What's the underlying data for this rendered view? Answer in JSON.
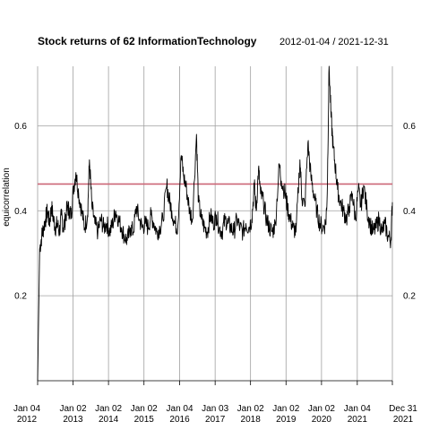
{
  "chart_data": {
    "type": "line",
    "title": "Stock returns of 62 InformationTechnology",
    "date_range_label": "2012-01-04 / 2021-12-31",
    "ylabel": "equicorrelation",
    "xlabel": "",
    "ylim": [
      0.0,
      0.74
    ],
    "y_ticks": [
      0.2,
      0.4,
      0.6
    ],
    "y_tick_labels": [
      "0.2",
      "0.4",
      "0.6"
    ],
    "x_ticks": [
      {
        "date": "2012-01-04",
        "line1": "Jan 04",
        "line2": "2012"
      },
      {
        "date": "2013-01-02",
        "line1": "Jan 02",
        "line2": "2013"
      },
      {
        "date": "2014-01-02",
        "line1": "Jan 02",
        "line2": "2014"
      },
      {
        "date": "2015-01-02",
        "line1": "Jan 02",
        "line2": "2015"
      },
      {
        "date": "2016-01-04",
        "line1": "Jan 04",
        "line2": "2016"
      },
      {
        "date": "2017-01-03",
        "line1": "Jan 03",
        "line2": "2017"
      },
      {
        "date": "2018-01-02",
        "line1": "Jan 02",
        "line2": "2018"
      },
      {
        "date": "2019-01-02",
        "line1": "Jan 02",
        "line2": "2019"
      },
      {
        "date": "2020-01-02",
        "line1": "Jan 02",
        "line2": "2020"
      },
      {
        "date": "2021-01-04",
        "line1": "Jan 04",
        "line2": "2021"
      },
      {
        "date": "2021-12-31",
        "line1": "Dec 31",
        "line2": "2021"
      }
    ],
    "reference_line": {
      "y": 0.463,
      "color": "#cc6677"
    },
    "grid": true,
    "line_color": "#000000",
    "series": [
      {
        "x": [
          "2012-01-04",
          "2012-01-25",
          "2012-02-15",
          "2012-03-05",
          "2012-03-25",
          "2012-04-15",
          "2012-05-05",
          "2012-05-25",
          "2012-06-15",
          "2012-07-05",
          "2012-07-25",
          "2012-08-15",
          "2012-09-05",
          "2012-09-25",
          "2012-10-15",
          "2012-11-05",
          "2012-11-25",
          "2012-12-15",
          "2013-01-05",
          "2013-02-01",
          "2013-03-01",
          "2013-04-01",
          "2013-05-01",
          "2013-06-01",
          "2013-06-20",
          "2013-07-15",
          "2013-08-15",
          "2013-09-15",
          "2013-10-15",
          "2013-11-15",
          "2013-12-15",
          "2014-01-15",
          "2014-02-15",
          "2014-03-15",
          "2014-04-15",
          "2014-05-15",
          "2014-06-15",
          "2014-07-15",
          "2014-08-15",
          "2014-09-15",
          "2014-10-15",
          "2014-11-15",
          "2014-12-15",
          "2015-01-15",
          "2015-02-15",
          "2015-03-15",
          "2015-04-15",
          "2015-05-15",
          "2015-06-15",
          "2015-07-15",
          "2015-08-25",
          "2015-09-15",
          "2015-10-15",
          "2015-11-15",
          "2015-12-15",
          "2016-01-20",
          "2016-02-15",
          "2016-03-15",
          "2016-04-15",
          "2016-05-15",
          "2016-06-25",
          "2016-07-15",
          "2016-08-15",
          "2016-09-15",
          "2016-10-15",
          "2016-11-15",
          "2016-12-15",
          "2017-01-15",
          "2017-02-15",
          "2017-03-15",
          "2017-04-15",
          "2017-05-15",
          "2017-06-15",
          "2017-07-15",
          "2017-08-15",
          "2017-09-15",
          "2017-10-15",
          "2017-11-15",
          "2017-12-15",
          "2018-01-15",
          "2018-02-10",
          "2018-03-01",
          "2018-03-25",
          "2018-04-15",
          "2018-05-15",
          "2018-06-15",
          "2018-07-15",
          "2018-08-15",
          "2018-09-15",
          "2018-10-25",
          "2018-11-15",
          "2018-12-25",
          "2019-01-15",
          "2019-02-15",
          "2019-03-15",
          "2019-04-15",
          "2019-05-25",
          "2019-06-15",
          "2019-07-15",
          "2019-08-15",
          "2019-09-15",
          "2019-10-15",
          "2019-11-15",
          "2019-12-15",
          "2020-01-15",
          "2020-02-15",
          "2020-03-01",
          "2020-03-20",
          "2020-04-10",
          "2020-05-01",
          "2020-05-25",
          "2020-06-15",
          "2020-07-15",
          "2020-08-15",
          "2020-09-15",
          "2020-10-15",
          "2020-11-15",
          "2020-12-15",
          "2021-01-15",
          "2021-02-10",
          "2021-03-10",
          "2021-04-15",
          "2021-05-15",
          "2021-06-15",
          "2021-07-15",
          "2021-08-15",
          "2021-09-15",
          "2021-10-15",
          "2021-11-15",
          "2021-12-15",
          "2021-12-31"
        ],
        "y": [
          0.0,
          0.31,
          0.34,
          0.36,
          0.38,
          0.4,
          0.37,
          0.41,
          0.38,
          0.36,
          0.37,
          0.35,
          0.39,
          0.36,
          0.38,
          0.41,
          0.4,
          0.39,
          0.45,
          0.49,
          0.44,
          0.4,
          0.36,
          0.39,
          0.52,
          0.41,
          0.37,
          0.35,
          0.38,
          0.36,
          0.37,
          0.35,
          0.37,
          0.4,
          0.38,
          0.36,
          0.34,
          0.33,
          0.36,
          0.35,
          0.41,
          0.38,
          0.36,
          0.37,
          0.36,
          0.39,
          0.37,
          0.35,
          0.36,
          0.38,
          0.46,
          0.43,
          0.4,
          0.37,
          0.36,
          0.53,
          0.48,
          0.45,
          0.4,
          0.38,
          0.58,
          0.42,
          0.38,
          0.36,
          0.35,
          0.39,
          0.37,
          0.39,
          0.36,
          0.35,
          0.38,
          0.37,
          0.36,
          0.35,
          0.38,
          0.36,
          0.35,
          0.37,
          0.36,
          0.38,
          0.46,
          0.4,
          0.5,
          0.44,
          0.42,
          0.38,
          0.36,
          0.35,
          0.37,
          0.51,
          0.47,
          0.44,
          0.41,
          0.38,
          0.36,
          0.35,
          0.52,
          0.43,
          0.41,
          0.56,
          0.48,
          0.44,
          0.4,
          0.37,
          0.36,
          0.37,
          0.44,
          0.74,
          0.62,
          0.55,
          0.5,
          0.45,
          0.42,
          0.4,
          0.38,
          0.41,
          0.44,
          0.38,
          0.45,
          0.41,
          0.46,
          0.4,
          0.37,
          0.35,
          0.36,
          0.38,
          0.35,
          0.37,
          0.34,
          0.33,
          0.42
        ]
      }
    ]
  }
}
